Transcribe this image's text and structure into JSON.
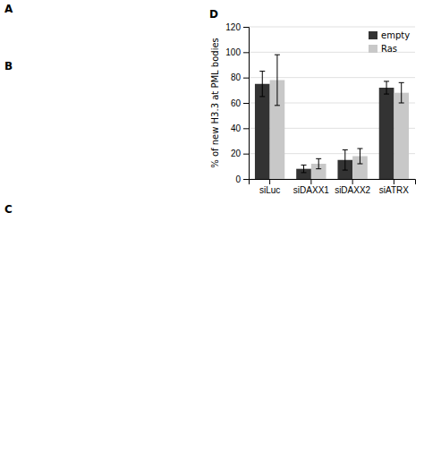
{
  "chart_data": {
    "type": "bar",
    "ylabel": "% of new H3.3 at PML bodies",
    "categories": [
      "siLuc",
      "siDAXX1",
      "siDAXX2",
      "siATRX"
    ],
    "series": [
      {
        "name": "empty",
        "color": "#333333",
        "values": [
          75,
          8,
          15,
          72
        ],
        "errors": [
          10,
          3,
          8,
          5
        ]
      },
      {
        "name": "Ras",
        "color": "#c8c8c8",
        "values": [
          78,
          12,
          18,
          68
        ],
        "errors": [
          20,
          4,
          6,
          8
        ]
      }
    ],
    "ylim": [
      0,
      120
    ],
    "yticks": [
      0,
      20,
      40,
      60,
      80,
      100,
      120
    ],
    "grid": true,
    "legend": "upper right",
    "annotations": [
      "D",
      "A",
      "B",
      "C"
    ]
  }
}
